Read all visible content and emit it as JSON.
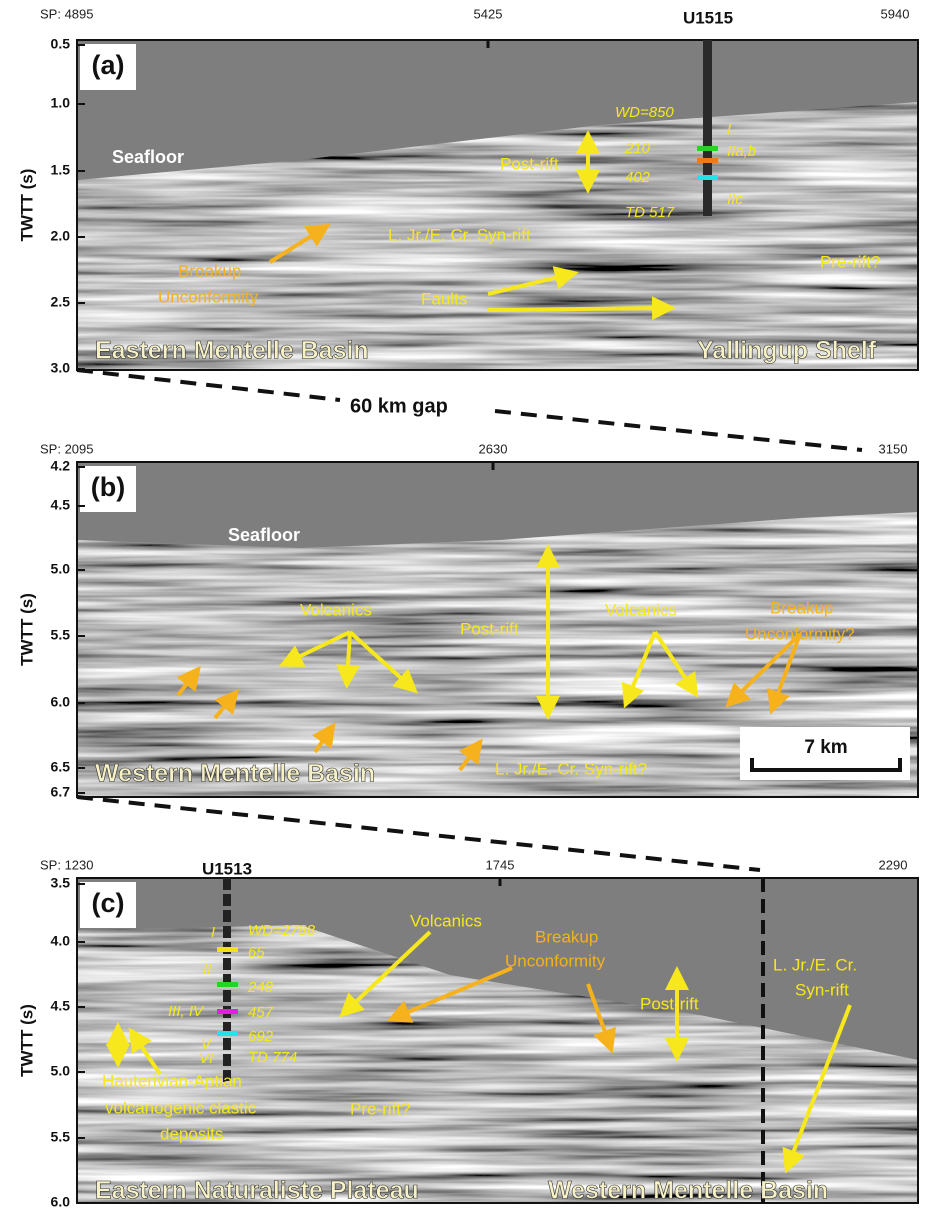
{
  "gap_label": "60 km gap",
  "panels": [
    {
      "label": "(a)",
      "axis_title": "TWTT (s)",
      "sp_labels": [
        "SP: 4895",
        "5425",
        "5940"
      ],
      "well": "U1515",
      "y_ticks": [
        "0.5",
        "1.0",
        "1.5",
        "2.0",
        "2.5",
        "3.0"
      ],
      "annotations": [
        "Seafloor",
        "WD=850",
        "I",
        "210",
        "IIa,b",
        "402",
        "IIc",
        "TD 517",
        "Post-rift",
        "L. Jr./E. Cr. Syn-rift",
        "Breakup",
        "Unconformity",
        "Faults",
        "Pre-rift?"
      ],
      "regions": [
        "Eastern Mentelle Basin",
        "Yallingup Shelf"
      ]
    },
    {
      "label": "(b)",
      "axis_title": "TWTT (s)",
      "sp_labels": [
        "SP: 2095",
        "2630",
        "3150"
      ],
      "y_ticks": [
        "4.2",
        "4.5",
        "5.0",
        "5.5",
        "6.0",
        "6.5",
        "6.7"
      ],
      "annotations": [
        "Seafloor",
        "Volcanics",
        "Post-rift",
        "Volcanics",
        "Breakup",
        "Unconformity?",
        "L. Jr./E. Cr. Syn-rift?"
      ],
      "regions": [
        "Western Mentelle Basin"
      ],
      "scale_bar": "7 km"
    },
    {
      "label": "(c)",
      "axis_title": "TWTT (s)",
      "sp_labels": [
        "SP: 1230",
        "1745",
        "2290"
      ],
      "well": "U1513",
      "y_ticks": [
        "3.5",
        "4.0",
        "4.5",
        "5.0",
        "5.5",
        "6.0"
      ],
      "annotations": [
        "WD=2788",
        "I",
        "65",
        "II",
        "248",
        "III, IV",
        "457",
        "V",
        "692",
        "VI",
        "TD 774",
        "Volcanics",
        "Breakup",
        "Unconformity",
        "Post-rift",
        "L. Jr./E. Cr.",
        "Syn-rift",
        "Hauterivian-Aptian",
        "volcanogenic clastic",
        "deposits",
        "Pre-rift?"
      ],
      "regions": [
        "Eastern Naturaliste Plateau",
        "Western Mentelle Basin"
      ]
    }
  ]
}
